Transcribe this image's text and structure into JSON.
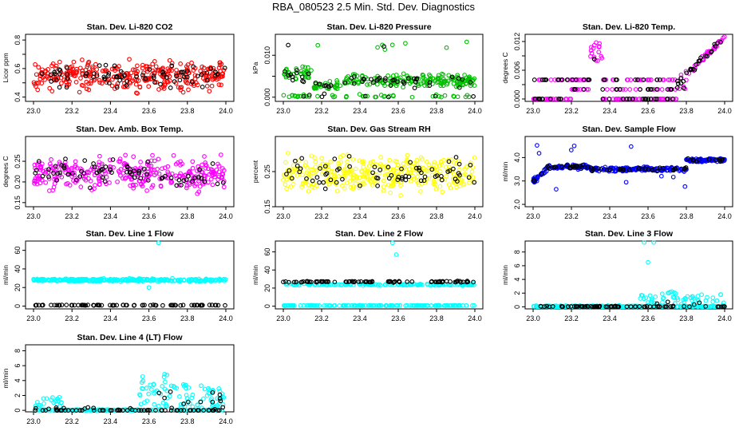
{
  "figure": {
    "title": "RBA_080523  2.5 Min. Std. Dev. Diagnostics"
  },
  "chart_data": [
    {
      "type": "scatter",
      "title": "Stan. Dev. Li-820 CO2",
      "ylabel": "Licor ppm",
      "xlim": [
        23.0,
        24.0
      ],
      "ylim": [
        0.37,
        0.84
      ],
      "yticks": [
        0.4,
        0.5,
        0.6,
        0.7,
        0.8
      ],
      "ytick_labels": [
        "0.4",
        "",
        "0.6",
        "",
        "0.8"
      ],
      "series": [
        {
          "name": "primary",
          "color": "#ff0000",
          "gen": {
            "kind": "noise",
            "base": 0.55,
            "amp": 0.09,
            "n": 330
          }
        },
        {
          "name": "secondary",
          "color": "#000000",
          "gen": {
            "kind": "noise",
            "base": 0.55,
            "amp": 0.07,
            "n": 70
          }
        }
      ]
    },
    {
      "type": "scatter",
      "title": "Stan. Dev. Li-820 Pressure",
      "ylabel": "kPa",
      "xlim": [
        23.0,
        24.0
      ],
      "ylim": [
        -0.001,
        0.015
      ],
      "yticks": [
        0.0,
        0.005,
        0.01
      ],
      "ytick_labels": [
        "0.000",
        "",
        "0.010"
      ],
      "series": [
        {
          "name": "primary",
          "color": "#00c000",
          "gen": {
            "kind": "pressure",
            "n": 300
          }
        },
        {
          "name": "secondary",
          "color": "#000000",
          "gen": {
            "kind": "pressure",
            "n": 60
          }
        }
      ]
    },
    {
      "type": "scatter",
      "title": "Stan. Dev. Li-820 Temp.",
      "ylabel": "degrees C",
      "xlim": [
        23.0,
        24.0
      ],
      "ylim": [
        -0.0005,
        0.0135
      ],
      "yticks": [
        0.0,
        0.003,
        0.006,
        0.009,
        0.012
      ],
      "ytick_labels": [
        "0.000",
        "",
        "0.006",
        "",
        "0.012"
      ],
      "series": [
        {
          "name": "primary",
          "color": "#ff00ff",
          "gen": {
            "kind": "temp",
            "n": 220
          }
        },
        {
          "name": "secondary",
          "color": "#000000",
          "gen": {
            "kind": "temp",
            "n": 90
          }
        }
      ]
    },
    {
      "type": "scatter",
      "title": "Stan. Dev. Amb. Box Temp.",
      "ylabel": "degrees C",
      "xlim": [
        23.0,
        24.0
      ],
      "ylim": [
        0.14,
        0.31
      ],
      "yticks": [
        0.15,
        0.2,
        0.25
      ],
      "ytick_labels": [
        "0.15",
        "0.20",
        "0.25"
      ],
      "series": [
        {
          "name": "primary",
          "color": "#ff00ff",
          "gen": {
            "kind": "noise",
            "base": 0.22,
            "amp": 0.035,
            "n": 330
          }
        },
        {
          "name": "secondary",
          "color": "#000000",
          "gen": {
            "kind": "noise",
            "base": 0.22,
            "amp": 0.03,
            "n": 70
          }
        }
      ]
    },
    {
      "type": "scatter",
      "title": "Stan. Dev. Gas Stream RH",
      "ylabel": "percent",
      "xlim": [
        23.0,
        24.0
      ],
      "ylim": [
        0.15,
        0.35
      ],
      "yticks": [
        0.15,
        0.25
      ],
      "ytick_labels": [
        "0.15",
        "0.25"
      ],
      "series": [
        {
          "name": "primary",
          "color": "#ffff00",
          "gen": {
            "kind": "noise",
            "base": 0.245,
            "amp": 0.045,
            "n": 330
          }
        },
        {
          "name": "secondary",
          "color": "#000000",
          "gen": {
            "kind": "noise",
            "base": 0.245,
            "amp": 0.035,
            "n": 70
          }
        }
      ]
    },
    {
      "type": "scatter",
      "title": "Stan. Dev. Sample Flow",
      "ylabel": "ml/min",
      "xlim": [
        23.0,
        24.0
      ],
      "ylim": [
        1.9,
        4.9
      ],
      "yticks": [
        2,
        3,
        4
      ],
      "ytick_labels": [
        "2.0",
        "3.0",
        "4.0"
      ],
      "series": [
        {
          "name": "primary",
          "color": "#0000ff",
          "gen": {
            "kind": "flow",
            "n": 330
          }
        },
        {
          "name": "secondary",
          "color": "#000000",
          "gen": {
            "kind": "flow",
            "n": 70
          }
        }
      ]
    },
    {
      "type": "scatter",
      "title": "Stan. Dev. Line 1 Flow",
      "ylabel": "ml/min",
      "xlim": [
        23.0,
        24.0
      ],
      "ylim": [
        -3,
        70
      ],
      "yticks": [
        0,
        20,
        40,
        60
      ],
      "ytick_labels": [
        "0",
        "20",
        "40",
        "60"
      ],
      "series": [
        {
          "name": "primary",
          "color": "#00ffff",
          "gen": {
            "kind": "level",
            "base": 28,
            "amp": 2.2,
            "n": 300,
            "out": [
              [
                23.65,
                68
              ],
              [
                23.6,
                20
              ]
            ]
          }
        },
        {
          "name": "secondary",
          "color": "#000000",
          "gen": {
            "kind": "level",
            "base": 1,
            "amp": 0.4,
            "n": 80,
            "out": []
          }
        }
      ]
    },
    {
      "type": "scatter",
      "title": "Stan. Dev. Line 2 Flow",
      "ylabel": "ml/min",
      "xlim": [
        23.0,
        24.0
      ],
      "ylim": [
        -3,
        72
      ],
      "yticks": [
        0,
        20,
        40,
        60
      ],
      "ytick_labels": [
        "0",
        "20",
        "40",
        "60"
      ],
      "series": [
        {
          "name": "primary",
          "color": "#00ffff",
          "gen": {
            "kind": "level2",
            "n": 300,
            "out": [
              [
                23.57,
                70
              ],
              [
                23.59,
                57
              ]
            ]
          }
        },
        {
          "name": "secondary",
          "color": "#000000",
          "gen": {
            "kind": "level",
            "base": 27,
            "amp": 1,
            "n": 80,
            "out": []
          }
        }
      ]
    },
    {
      "type": "scatter",
      "title": "Stan. Dev. Line 3 Flow",
      "ylabel": "ml/min",
      "xlim": [
        23.0,
        24.0
      ],
      "ylim": [
        -0.3,
        9.6
      ],
      "yticks": [
        0,
        2,
        4,
        6,
        8
      ],
      "ytick_labels": [
        "0",
        "2",
        "4",
        "6",
        "8"
      ],
      "series": [
        {
          "name": "primary",
          "color": "#00ffff",
          "gen": {
            "kind": "line3",
            "n": 300,
            "out": [
              [
                23.58,
                9.4
              ],
              [
                23.63,
                9.4
              ],
              [
                23.6,
                6.5
              ]
            ]
          }
        },
        {
          "name": "secondary",
          "color": "#000000",
          "gen": {
            "kind": "line3low",
            "n": 80
          }
        }
      ]
    },
    {
      "type": "scatter",
      "title": "Stan. Dev. Line 4 (LT) Flow",
      "ylabel": "ml/min",
      "xlim": [
        23.0,
        24.0
      ],
      "ylim": [
        -0.2,
        8.8
      ],
      "yticks": [
        0,
        2,
        4,
        6,
        8
      ],
      "ytick_labels": [
        "0",
        "2",
        "4",
        "6",
        "8"
      ],
      "series": [
        {
          "name": "primary",
          "color": "#00ffff",
          "gen": {
            "kind": "line4",
            "n": 300
          }
        },
        {
          "name": "secondary",
          "color": "#000000",
          "gen": {
            "kind": "line4low",
            "n": 80
          }
        }
      ]
    }
  ],
  "xtick_values": [
    23.0,
    23.2,
    23.4,
    23.6,
    23.8,
    24.0
  ],
  "xtick_labels": [
    "23.0",
    "23.2",
    "23.4",
    "23.6",
    "23.8",
    "24.0"
  ]
}
